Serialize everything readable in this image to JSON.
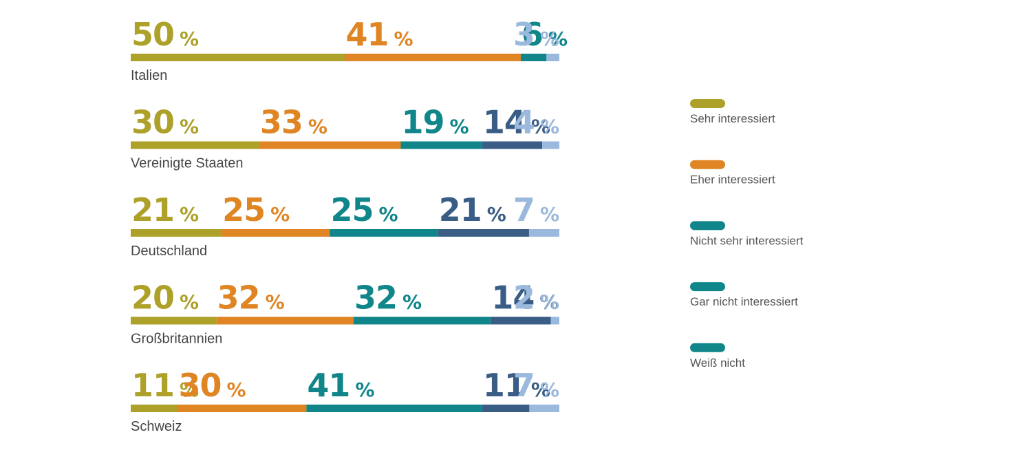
{
  "chart_data": {
    "type": "bar",
    "stacked": true,
    "orientation": "horizontal",
    "unit": "%",
    "categories": [
      "Italien",
      "Vereinigte Staaten",
      "Deutschland",
      "Großbritannien",
      "Schweiz"
    ],
    "series": [
      {
        "name": "Sehr interessiert",
        "color": "#ADA12A",
        "values": [
          50,
          30,
          21,
          20,
          11
        ]
      },
      {
        "name": "Eher interessiert",
        "color": "#E08524",
        "values": [
          41,
          33,
          25,
          32,
          30
        ]
      },
      {
        "name": "Nicht sehr interessiert",
        "color": "#10868A",
        "values": [
          6,
          19,
          25,
          32,
          41
        ]
      },
      {
        "name": "Gar nicht interessiert",
        "color": "#3A5D85",
        "values": [
          0,
          14,
          21,
          14,
          11
        ]
      },
      {
        "name": "Weiß nicht",
        "color": "#9AB9DC",
        "values": [
          3,
          4,
          7,
          2,
          7
        ]
      }
    ],
    "legend_swatch_colors": [
      "#ADA12A",
      "#E08524",
      "#10868A",
      "#10868A",
      "#10868A"
    ],
    "legend_position": "right",
    "xlim": [
      0,
      100
    ],
    "grid": false
  }
}
